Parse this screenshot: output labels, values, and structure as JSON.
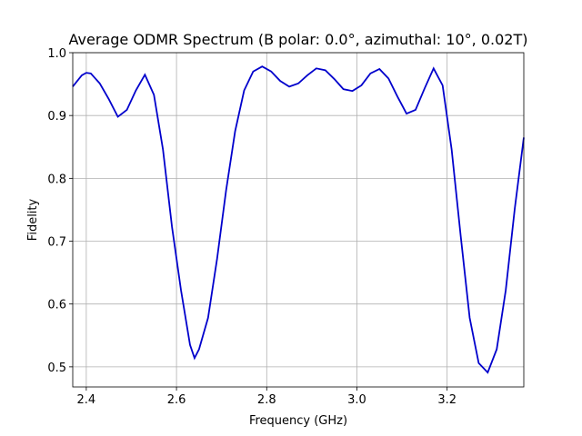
{
  "chart_data": {
    "type": "line",
    "title": "Average ODMR Spectrum (B polar: 0.0°, azimuthal: 10°, 0.02T)",
    "x_label": "Frequency (GHz)",
    "y_label": "Fidelity",
    "x": [
      2.37,
      2.39,
      2.4,
      2.41,
      2.43,
      2.45,
      2.47,
      2.49,
      2.51,
      2.53,
      2.55,
      2.57,
      2.59,
      2.61,
      2.63,
      2.64,
      2.65,
      2.67,
      2.69,
      2.71,
      2.73,
      2.75,
      2.77,
      2.79,
      2.81,
      2.83,
      2.85,
      2.87,
      2.89,
      2.91,
      2.93,
      2.95,
      2.97,
      2.99,
      3.01,
      3.03,
      3.05,
      3.07,
      3.09,
      3.11,
      3.13,
      3.15,
      3.17,
      3.19,
      3.21,
      3.23,
      3.25,
      3.27,
      3.29,
      3.31,
      3.33,
      3.35,
      3.37
    ],
    "series": [
      {
        "color": "#0000cc",
        "values": [
          0.946,
          0.964,
          0.968,
          0.967,
          0.951,
          0.926,
          0.898,
          0.909,
          0.94,
          0.965,
          0.933,
          0.846,
          0.723,
          0.622,
          0.535,
          0.514,
          0.528,
          0.578,
          0.672,
          0.781,
          0.875,
          0.94,
          0.97,
          0.978,
          0.97,
          0.955,
          0.946,
          0.951,
          0.964,
          0.975,
          0.972,
          0.958,
          0.942,
          0.939,
          0.948,
          0.967,
          0.974,
          0.959,
          0.93,
          0.903,
          0.909,
          0.943,
          0.975,
          0.948,
          0.846,
          0.709,
          0.578,
          0.506,
          0.491,
          0.528,
          0.622,
          0.752,
          0.865
        ]
      }
    ],
    "xlim": [
      2.37,
      3.37
    ],
    "ylim": [
      0.468,
      1.0
    ],
    "xticks": [
      2.4,
      2.6,
      2.8,
      {
        "value": 3.0,
        "label": "3.0"
      },
      3.2
    ],
    "yticks": [
      0.5,
      0.6,
      0.7,
      0.8,
      0.9,
      {
        "value": 1.0,
        "label": "1.0"
      }
    ],
    "grid": true
  }
}
